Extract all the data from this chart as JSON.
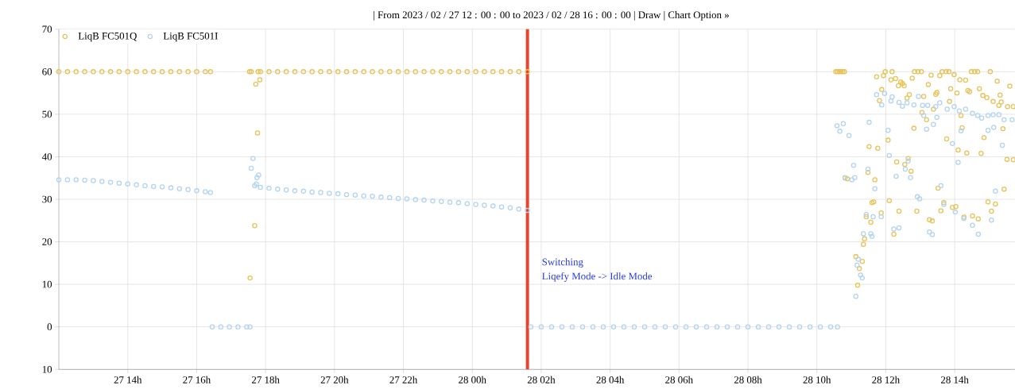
{
  "chart_data": {
    "type": "scatter",
    "title": "| From 2023 / 02 / 27 12 : 00 : 00 to 2023 / 02 / 28 16 : 00 : 00 | Draw | Chart Option »",
    "xlim": [
      "2023-02-27T12:00",
      "2023-02-28T15:45"
    ],
    "ylim": [
      -10,
      70
    ],
    "xticks": [
      {
        "value": "2023-02-27T14:00",
        "label": "27 14h"
      },
      {
        "value": "2023-02-27T16:00",
        "label": "27 16h"
      },
      {
        "value": "2023-02-27T18:00",
        "label": "27 18h"
      },
      {
        "value": "2023-02-27T20:00",
        "label": "27 20h"
      },
      {
        "value": "2023-02-27T22:00",
        "label": "27 22h"
      },
      {
        "value": "2023-02-28T00:00",
        "label": "28 00h"
      },
      {
        "value": "2023-02-28T02:00",
        "label": "28 02h"
      },
      {
        "value": "2023-02-28T04:00",
        "label": "28 04h"
      },
      {
        "value": "2023-02-28T06:00",
        "label": "28 06h"
      },
      {
        "value": "2023-02-28T08:00",
        "label": "28 08h"
      },
      {
        "value": "2023-02-28T10:00",
        "label": "28 10h"
      },
      {
        "value": "2023-02-28T12:00",
        "label": "28 12h"
      },
      {
        "value": "2023-02-28T14:00",
        "label": "28 14h"
      }
    ],
    "yticks": [
      {
        "value": -10,
        "label": "10"
      },
      0,
      10,
      20,
      30,
      40,
      50,
      60,
      70
    ],
    "grid": true,
    "legend": "top left",
    "marker": "circle",
    "ref_lines": [
      {
        "axis": "x",
        "value": "2023-02-28T01:36",
        "color": "#e8432e"
      }
    ],
    "annotations": [
      "Switching",
      "Liqefy Mode -> Idle Mode"
    ],
    "series": [
      {
        "name": "LiqB FC501Q",
        "color": "#e8c35a",
        "x": [
          "2023-02-27T12:00",
          "2023-02-27T12:15",
          "2023-02-27T12:30",
          "2023-02-27T12:45",
          "2023-02-27T13:00",
          "2023-02-27T13:15",
          "2023-02-27T13:30",
          "2023-02-27T13:45",
          "2023-02-27T14:00",
          "2023-02-27T14:15",
          "2023-02-27T14:30",
          "2023-02-27T14:45",
          "2023-02-27T15:00",
          "2023-02-27T15:15",
          "2023-02-27T15:30",
          "2023-02-27T15:45",
          "2023-02-27T16:00",
          "2023-02-27T16:15",
          "2023-02-27T16:24",
          "2023-02-27T17:32",
          "2023-02-27T17:35",
          "2023-02-27T17:47",
          "2023-02-27T17:43",
          "2023-02-27T17:50",
          "2023-02-27T17:46",
          "2023-02-27T17:41",
          "2023-02-27T17:33",
          "2023-02-27T17:51",
          "2023-02-27T18:06",
          "2023-02-27T18:21",
          "2023-02-27T18:36",
          "2023-02-27T18:51",
          "2023-02-27T19:06",
          "2023-02-27T19:21",
          "2023-02-27T19:36",
          "2023-02-27T19:51",
          "2023-02-27T20:06",
          "2023-02-27T20:21",
          "2023-02-27T20:36",
          "2023-02-27T20:51",
          "2023-02-27T21:06",
          "2023-02-27T21:21",
          "2023-02-27T21:36",
          "2023-02-27T21:51",
          "2023-02-27T22:06",
          "2023-02-27T22:21",
          "2023-02-27T22:36",
          "2023-02-27T22:51",
          "2023-02-27T23:06",
          "2023-02-27T23:21",
          "2023-02-27T23:36",
          "2023-02-27T23:51",
          "2023-02-28T00:06",
          "2023-02-28T00:21",
          "2023-02-28T00:36",
          "2023-02-28T00:51",
          "2023-02-28T01:06",
          "2023-02-28T01:21",
          "2023-02-28T01:36",
          "2023-02-28T10:33",
          "2023-02-28T10:36",
          "2023-02-28T10:39",
          "2023-02-28T10:42",
          "2023-02-28T10:45",
          "2023-02-28T10:48",
          "2023-02-28T11:44",
          "2023-02-28T11:56",
          "2023-02-28T11:59",
          "2023-02-28T12:11",
          "2023-02-28T12:09",
          "2023-02-28T12:17",
          "2023-02-28T12:22",
          "2023-02-28T12:26",
          "2023-02-28T12:29",
          "2023-02-28T12:32",
          "2023-02-28T12:46",
          "2023-02-28T12:50",
          "2023-02-28T12:56",
          "2023-02-28T13:02",
          "2023-02-28T13:14",
          "2023-02-28T13:19",
          "2023-02-28T13:34",
          "2023-02-28T13:38",
          "2023-02-28T13:45",
          "2023-02-28T13:50",
          "2023-02-28T13:59",
          "2023-02-28T14:09",
          "2023-02-28T14:19",
          "2023-02-28T14:29",
          "2023-02-28T14:35",
          "2023-02-28T14:40",
          "2023-02-28T15:02",
          "2023-02-28T15:14",
          "2023-02-28T15:36",
          "2023-02-28T11:53",
          "2023-02-28T11:49",
          "2023-02-28T12:37",
          "2023-02-28T12:41",
          "2023-02-28T13:06",
          "2023-02-28T13:27",
          "2023-02-28T13:29",
          "2023-02-28T13:53",
          "2023-02-28T14:04",
          "2023-02-28T14:23",
          "2023-02-28T14:26",
          "2023-02-28T14:43",
          "2023-02-28T14:49",
          "2023-02-28T14:56",
          "2023-02-28T15:07",
          "2023-02-28T15:19",
          "2023-02-28T15:21",
          "2023-02-28T15:17",
          "2023-02-28T15:32",
          "2023-02-28T15:42",
          "2023-02-28T13:51",
          "2023-02-28T13:23",
          "2023-02-28T13:03",
          "2023-02-28T13:11",
          "2023-02-28T12:49",
          "2023-02-28T14:11",
          "2023-02-28T14:13",
          "2023-02-28T15:24",
          "2023-02-28T14:51",
          "2023-02-28T13:46",
          "2023-02-28T12:04",
          "2023-02-28T11:31",
          "2023-02-28T11:46",
          "2023-02-28T14:06",
          "2023-02-28T14:21",
          "2023-02-28T14:46",
          "2023-02-28T15:31",
          "2023-02-28T15:42",
          "2023-02-28T12:19",
          "2023-02-28T12:39",
          "2023-02-28T12:33",
          "2023-02-28T12:44",
          "2023-02-28T11:29",
          "2023-02-28T11:41",
          "2023-02-28T13:31",
          "2023-02-28T15:26",
          "2023-02-28T11:36",
          "2023-02-28T11:39",
          "2023-02-28T12:06",
          "2023-02-28T13:41",
          "2023-02-28T14:58",
          "2023-02-28T15:11",
          "2023-02-28T11:52",
          "2023-02-28T11:26",
          "2023-02-28T12:23",
          "2023-02-28T12:54",
          "2023-02-28T13:36",
          "2023-02-28T13:56",
          "2023-02-28T14:02",
          "2023-02-28T14:16",
          "2023-02-28T14:31",
          "2023-02-28T14:41",
          "2023-02-28T15:04",
          "2023-02-28T11:34",
          "2023-02-28T13:16",
          "2023-02-28T13:21",
          "2023-02-28T12:14",
          "2023-02-28T11:23",
          "2023-02-28T11:21",
          "2023-02-28T11:08",
          "2023-02-28T11:19",
          "2023-02-28T11:14",
          "2023-02-28T11:11",
          "2023-02-28T10:49",
          "2023-02-28T10:53"
        ],
        "values": [
          60,
          60,
          60,
          60,
          60,
          60,
          60,
          60,
          60,
          60,
          60,
          60,
          60,
          60,
          60,
          60,
          60,
          60,
          60,
          60,
          60,
          60,
          57.1,
          58.1,
          45.6,
          23.8,
          11.5,
          60,
          60,
          60,
          60,
          60,
          60,
          60,
          60,
          60,
          60,
          60,
          60,
          60,
          60,
          60,
          60,
          60,
          60,
          60,
          60,
          60,
          60,
          60,
          60,
          60,
          60,
          60,
          60,
          60,
          60,
          60,
          60,
          60,
          60,
          60,
          60,
          60,
          60,
          58.8,
          59.1,
          60,
          60,
          58.1,
          58.4,
          56.7,
          57.6,
          57.2,
          56.7,
          58.5,
          60,
          60,
          60,
          57.0,
          59.2,
          59.1,
          60,
          60,
          60,
          59.3,
          58.1,
          58.0,
          60,
          60,
          60,
          60,
          57.8,
          56.6,
          55.8,
          53.2,
          53.8,
          54.6,
          54.2,
          54.7,
          55.1,
          56.0,
          55.0,
          55.6,
          55.3,
          56.0,
          54.4,
          53.9,
          53.0,
          54.5,
          52.9,
          52.1,
          51.8,
          51.8,
          53.0,
          51.2,
          50.4,
          48.7,
          46.7,
          49.7,
          46.8,
          46.6,
          44.5,
          44.2,
          43.9,
          42.4,
          42.0,
          41.6,
          40.9,
          40.8,
          39.4,
          39.3,
          38.8,
          39.6,
          38.2,
          36.6,
          36.3,
          34.6,
          32.6,
          32.4,
          29.2,
          29.4,
          29.7,
          29.2,
          29.4,
          28.9,
          26.8,
          25.9,
          27.2,
          27.2,
          27.3,
          28.1,
          28.3,
          25.8,
          26.1,
          25.4,
          27.2,
          24.6,
          25.2,
          24.9,
          21.8,
          20.7,
          19.4,
          16.5,
          15.4,
          13.7,
          9.8,
          35.0,
          34.8
        ]
      },
      {
        "name": "LiqB FC501I",
        "color": "#b3d4f0",
        "x": [
          "2023-02-27T12:00",
          "2023-02-27T12:15",
          "2023-02-27T12:30",
          "2023-02-27T12:45",
          "2023-02-27T13:00",
          "2023-02-27T13:15",
          "2023-02-27T13:30",
          "2023-02-27T13:45",
          "2023-02-27T14:00",
          "2023-02-27T14:15",
          "2023-02-27T14:30",
          "2023-02-27T14:45",
          "2023-02-27T15:00",
          "2023-02-27T15:15",
          "2023-02-27T15:30",
          "2023-02-27T15:45",
          "2023-02-27T16:00",
          "2023-02-27T16:15",
          "2023-02-27T16:24",
          "2023-02-27T16:27",
          "2023-02-27T16:42",
          "2023-02-27T16:57",
          "2023-02-27T17:12",
          "2023-02-27T17:27",
          "2023-02-27T17:33",
          "2023-02-27T17:38",
          "2023-02-27T17:35",
          "2023-02-27T17:48",
          "2023-02-27T17:45",
          "2023-02-27T17:41",
          "2023-02-27T17:44",
          "2023-02-27T17:51",
          "2023-02-27T18:06",
          "2023-02-27T18:21",
          "2023-02-27T18:36",
          "2023-02-27T18:51",
          "2023-02-27T19:06",
          "2023-02-27T19:21",
          "2023-02-27T19:36",
          "2023-02-27T19:51",
          "2023-02-27T20:06",
          "2023-02-27T20:21",
          "2023-02-27T20:36",
          "2023-02-27T20:51",
          "2023-02-27T21:06",
          "2023-02-27T21:21",
          "2023-02-27T21:36",
          "2023-02-27T21:51",
          "2023-02-27T22:06",
          "2023-02-27T22:21",
          "2023-02-27T22:36",
          "2023-02-27T22:51",
          "2023-02-27T23:06",
          "2023-02-27T23:21",
          "2023-02-27T23:36",
          "2023-02-27T23:51",
          "2023-02-28T00:06",
          "2023-02-28T00:21",
          "2023-02-28T00:36",
          "2023-02-28T00:51",
          "2023-02-28T01:06",
          "2023-02-28T01:21",
          "2023-02-28T01:36",
          "2023-02-28T01:42",
          "2023-02-28T02:00",
          "2023-02-28T02:18",
          "2023-02-28T02:36",
          "2023-02-28T02:54",
          "2023-02-28T03:12",
          "2023-02-28T03:30",
          "2023-02-28T03:48",
          "2023-02-28T04:06",
          "2023-02-28T04:24",
          "2023-02-28T04:42",
          "2023-02-28T05:00",
          "2023-02-28T05:18",
          "2023-02-28T05:36",
          "2023-02-28T05:54",
          "2023-02-28T06:12",
          "2023-02-28T06:30",
          "2023-02-28T06:48",
          "2023-02-28T07:06",
          "2023-02-28T07:24",
          "2023-02-28T07:42",
          "2023-02-28T08:00",
          "2023-02-28T08:18",
          "2023-02-28T08:36",
          "2023-02-28T08:54",
          "2023-02-28T09:12",
          "2023-02-28T09:30",
          "2023-02-28T09:48",
          "2023-02-28T10:06",
          "2023-02-28T10:24",
          "2023-02-28T10:36",
          "2023-02-28T10:35",
          "2023-02-28T10:40",
          "2023-02-28T10:46",
          "2023-02-28T10:56",
          "2023-02-28T11:31",
          "2023-02-28T11:04",
          "2023-02-28T11:29",
          "2023-02-28T10:49",
          "2023-02-28T11:01",
          "2023-02-28T11:06",
          "2023-02-28T11:41",
          "2023-02-28T11:26",
          "2023-02-28T11:38",
          "2023-02-28T11:52",
          "2023-02-28T11:21",
          "2023-02-28T11:36",
          "2023-02-28T11:34",
          "2023-02-28T11:12",
          "2023-02-28T11:10",
          "2023-02-28T11:16",
          "2023-02-28T11:19",
          "2023-02-28T11:08",
          "2023-02-28T11:44",
          "2023-02-28T11:53",
          "2023-02-28T11:58",
          "2023-02-28T12:11",
          "2023-02-28T12:09",
          "2023-02-28T12:23",
          "2023-02-28T12:29",
          "2023-02-28T12:37",
          "2023-02-28T12:49",
          "2023-02-28T12:57",
          "2023-02-28T13:04",
          "2023-02-28T13:13",
          "2023-02-28T13:27",
          "2023-02-28T13:34",
          "2023-02-28T13:47",
          "2023-02-28T13:59",
          "2023-02-28T14:08",
          "2023-02-28T14:19",
          "2023-02-28T14:31",
          "2023-02-28T14:40",
          "2023-02-28T14:47",
          "2023-02-28T14:58",
          "2023-02-28T15:07",
          "2023-02-28T15:17",
          "2023-02-28T15:26",
          "2023-02-28T15:40",
          "2023-02-28T12:04",
          "2023-02-28T12:06",
          "2023-02-28T12:18",
          "2023-02-28T12:39",
          "2023-02-28T12:34",
          "2023-02-28T12:43",
          "2023-02-28T12:55",
          "2023-02-28T12:59",
          "2023-02-28T13:06",
          "2023-02-28T13:11",
          "2023-02-28T13:23",
          "2023-02-28T13:29",
          "2023-02-28T13:41",
          "2023-02-28T13:36",
          "2023-02-28T13:56",
          "2023-02-28T14:01",
          "2023-02-28T14:06",
          "2023-02-28T14:11",
          "2023-02-28T14:16",
          "2023-02-28T14:31",
          "2023-02-28T14:41",
          "2023-02-28T14:58",
          "2023-02-28T15:04",
          "2023-02-28T15:11",
          "2023-02-28T15:23",
          "2023-02-28T12:14",
          "2023-02-28T12:23",
          "2023-02-28T13:16",
          "2023-02-28T13:21",
          "2023-02-28T15:08"
        ],
        "values": [
          34.6,
          34.6,
          34.6,
          34.5,
          34.4,
          34.2,
          34.0,
          33.8,
          33.6,
          33.4,
          33.2,
          33.0,
          32.9,
          32.7,
          32.5,
          32.3,
          32.0,
          31.8,
          31.6,
          0,
          0,
          0,
          0,
          0,
          0,
          39.6,
          37.3,
          35.7,
          35.1,
          33.2,
          33.6,
          32.8,
          32.6,
          32.4,
          32.2,
          32.0,
          31.9,
          31.7,
          31.6,
          31.4,
          31.3,
          31.1,
          31.0,
          30.8,
          30.7,
          30.5,
          30.4,
          30.2,
          30.1,
          29.9,
          29.8,
          29.6,
          29.5,
          29.3,
          29.2,
          29.0,
          28.8,
          28.6,
          28.4,
          28.2,
          28.0,
          27.7,
          27.4,
          0,
          0,
          0,
          0,
          0,
          0,
          0,
          0,
          0,
          0,
          0,
          0,
          0,
          0,
          0,
          0,
          0,
          0,
          0,
          0,
          0,
          0,
          0,
          0,
          0,
          0,
          0,
          0,
          0,
          0,
          0,
          47.3,
          46.0,
          47.8,
          45.0,
          48.1,
          38.0,
          37.1,
          35.1,
          34.6,
          35.1,
          32.5,
          26.4,
          25.9,
          25.9,
          21.9,
          21.3,
          21.9,
          15.9,
          14.5,
          12.2,
          11.5,
          7.2,
          54.6,
          52.2,
          54.9,
          54.1,
          53.1,
          52.8,
          51.9,
          52.7,
          52.2,
          54.2,
          52.1,
          52.1,
          51.8,
          52.7,
          51.2,
          51.8,
          50.8,
          51.2,
          50.2,
          49.7,
          49.1,
          49.7,
          49.9,
          49.9,
          48.7,
          48.7,
          46.2,
          40.3,
          35.4,
          39.0,
          37.1,
          35.1,
          30.6,
          30.1,
          49.7,
          46.5,
          47.6,
          49.3,
          28.8,
          33.2,
          43.1,
          27.0,
          38.7,
          46.1,
          25.5,
          23.9,
          21.8,
          46.2,
          25.1,
          31.9,
          42.7,
          23.0,
          23.3,
          22.3,
          21.7,
          46.9
        ]
      }
    ]
  }
}
